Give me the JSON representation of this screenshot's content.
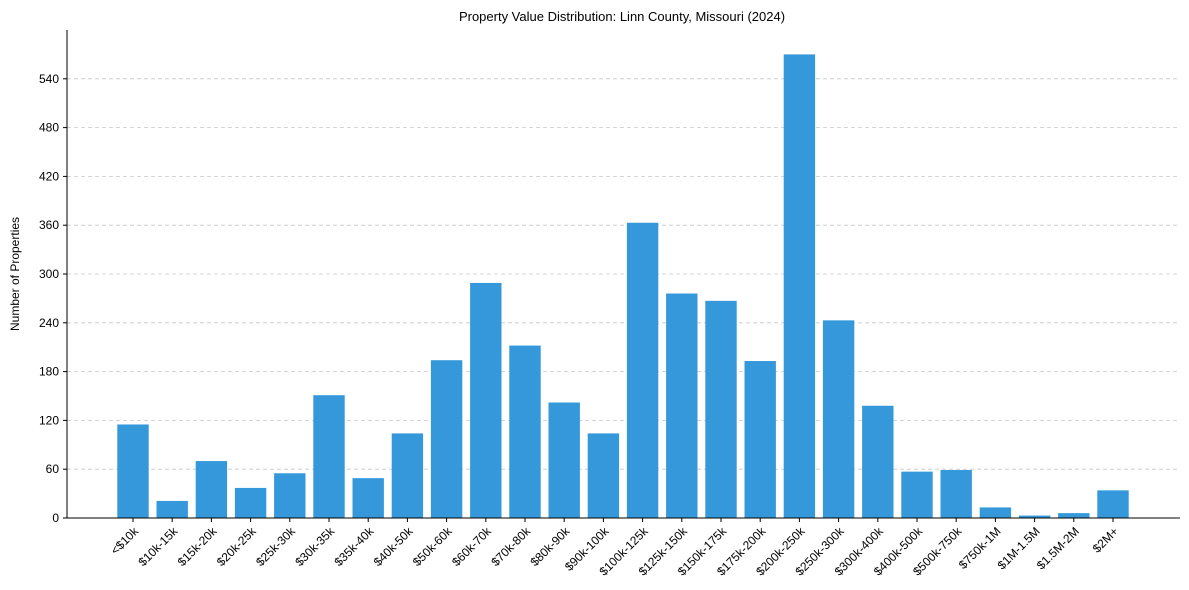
{
  "chart_data": {
    "type": "bar",
    "title": "Property Value Distribution: Linn County, Missouri (2024)",
    "xlabel": "",
    "ylabel": "Number of Properties",
    "categories": [
      "<$10k",
      "$10k-15k",
      "$15k-20k",
      "$20k-25k",
      "$25k-30k",
      "$30k-35k",
      "$35k-40k",
      "$40k-50k",
      "$50k-60k",
      "$60k-70k",
      "$70k-80k",
      "$80k-90k",
      "$90k-100k",
      "$100k-125k",
      "$125k-150k",
      "$150k-175k",
      "$175k-200k",
      "$200k-250k",
      "$250k-300k",
      "$300k-400k",
      "$400k-500k",
      "$500k-750k",
      "$750k-1M",
      "$1M-1.5M",
      "$1.5M-2M",
      "$2M+"
    ],
    "values": [
      115,
      21,
      70,
      37,
      55,
      151,
      49,
      104,
      194,
      289,
      212,
      142,
      104,
      363,
      276,
      267,
      193,
      570,
      243,
      138,
      57,
      59,
      13,
      3,
      6,
      34
    ],
    "ylim": [
      0,
      600
    ],
    "yticks": [
      0,
      60,
      120,
      180,
      240,
      300,
      360,
      420,
      480,
      540
    ],
    "grid": "y-dashed",
    "bar_color": "#3498db"
  }
}
